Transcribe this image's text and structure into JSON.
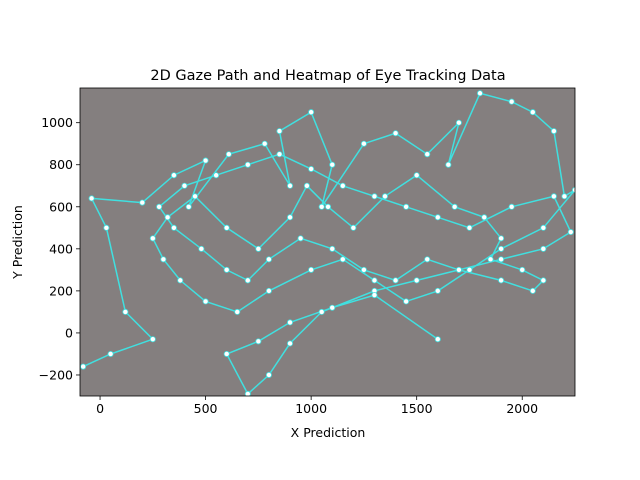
{
  "chart_data": {
    "type": "line",
    "title": "2D Gaze Path and Heatmap of Eye Tracking Data",
    "x_label": "X Prediction",
    "y_label": "Y Prediction",
    "background_color": "#847f7f",
    "marker_fill": "#ffffff",
    "xlim": [
      -95,
      2250
    ],
    "ylim": [
      -300,
      1165
    ],
    "xticks": [
      0,
      500,
      1000,
      1500,
      2000
    ],
    "yticks": [
      {
        "value": -200,
        "label": "−200"
      },
      0,
      200,
      400,
      600,
      800,
      1000
    ],
    "series": [
      {
        "color": "#40e0e0",
        "x": [
          -80,
          50,
          250,
          120,
          30,
          -40,
          200,
          350,
          500,
          420,
          610,
          780,
          900,
          850,
          1000,
          1100,
          1050,
          1250,
          1400,
          1550,
          1700,
          1650,
          1800,
          1950,
          2050,
          2150,
          2200,
          2250,
          2100,
          1900,
          1750,
          1600,
          1450,
          1300,
          1150,
          1000,
          800,
          650,
          500,
          380,
          300,
          250,
          320,
          450,
          600,
          750,
          900,
          980,
          1080,
          1200,
          1350,
          1500,
          1680,
          1820,
          1900,
          1850,
          2000,
          2100,
          2050,
          1900,
          1700,
          1550,
          1400,
          1250,
          1100,
          950,
          800,
          700,
          600,
          480,
          350,
          280,
          400,
          550,
          700,
          850,
          1000,
          1150,
          1300,
          1450,
          1600,
          1750,
          1950,
          2150,
          2230,
          2100,
          1900,
          1700,
          1500,
          1300,
          1050,
          900,
          800,
          700,
          600,
          750,
          900,
          1100,
          1300,
          1600
        ],
        "values": [
          -160,
          -100,
          -30,
          100,
          500,
          640,
          620,
          750,
          820,
          600,
          850,
          900,
          700,
          960,
          1050,
          800,
          600,
          900,
          950,
          850,
          1000,
          800,
          1140,
          1100,
          1050,
          960,
          650,
          680,
          500,
          400,
          300,
          200,
          150,
          250,
          350,
          300,
          200,
          100,
          150,
          250,
          350,
          450,
          550,
          650,
          500,
          400,
          550,
          700,
          600,
          500,
          650,
          750,
          600,
          550,
          450,
          350,
          300,
          250,
          200,
          250,
          300,
          350,
          250,
          300,
          400,
          450,
          350,
          250,
          300,
          400,
          500,
          600,
          700,
          750,
          800,
          850,
          780,
          700,
          650,
          600,
          550,
          500,
          600,
          650,
          480,
          400,
          350,
          300,
          250,
          200,
          100,
          -50,
          -200,
          -290,
          -100,
          -40,
          50,
          120,
          180,
          -30
        ]
      }
    ]
  }
}
